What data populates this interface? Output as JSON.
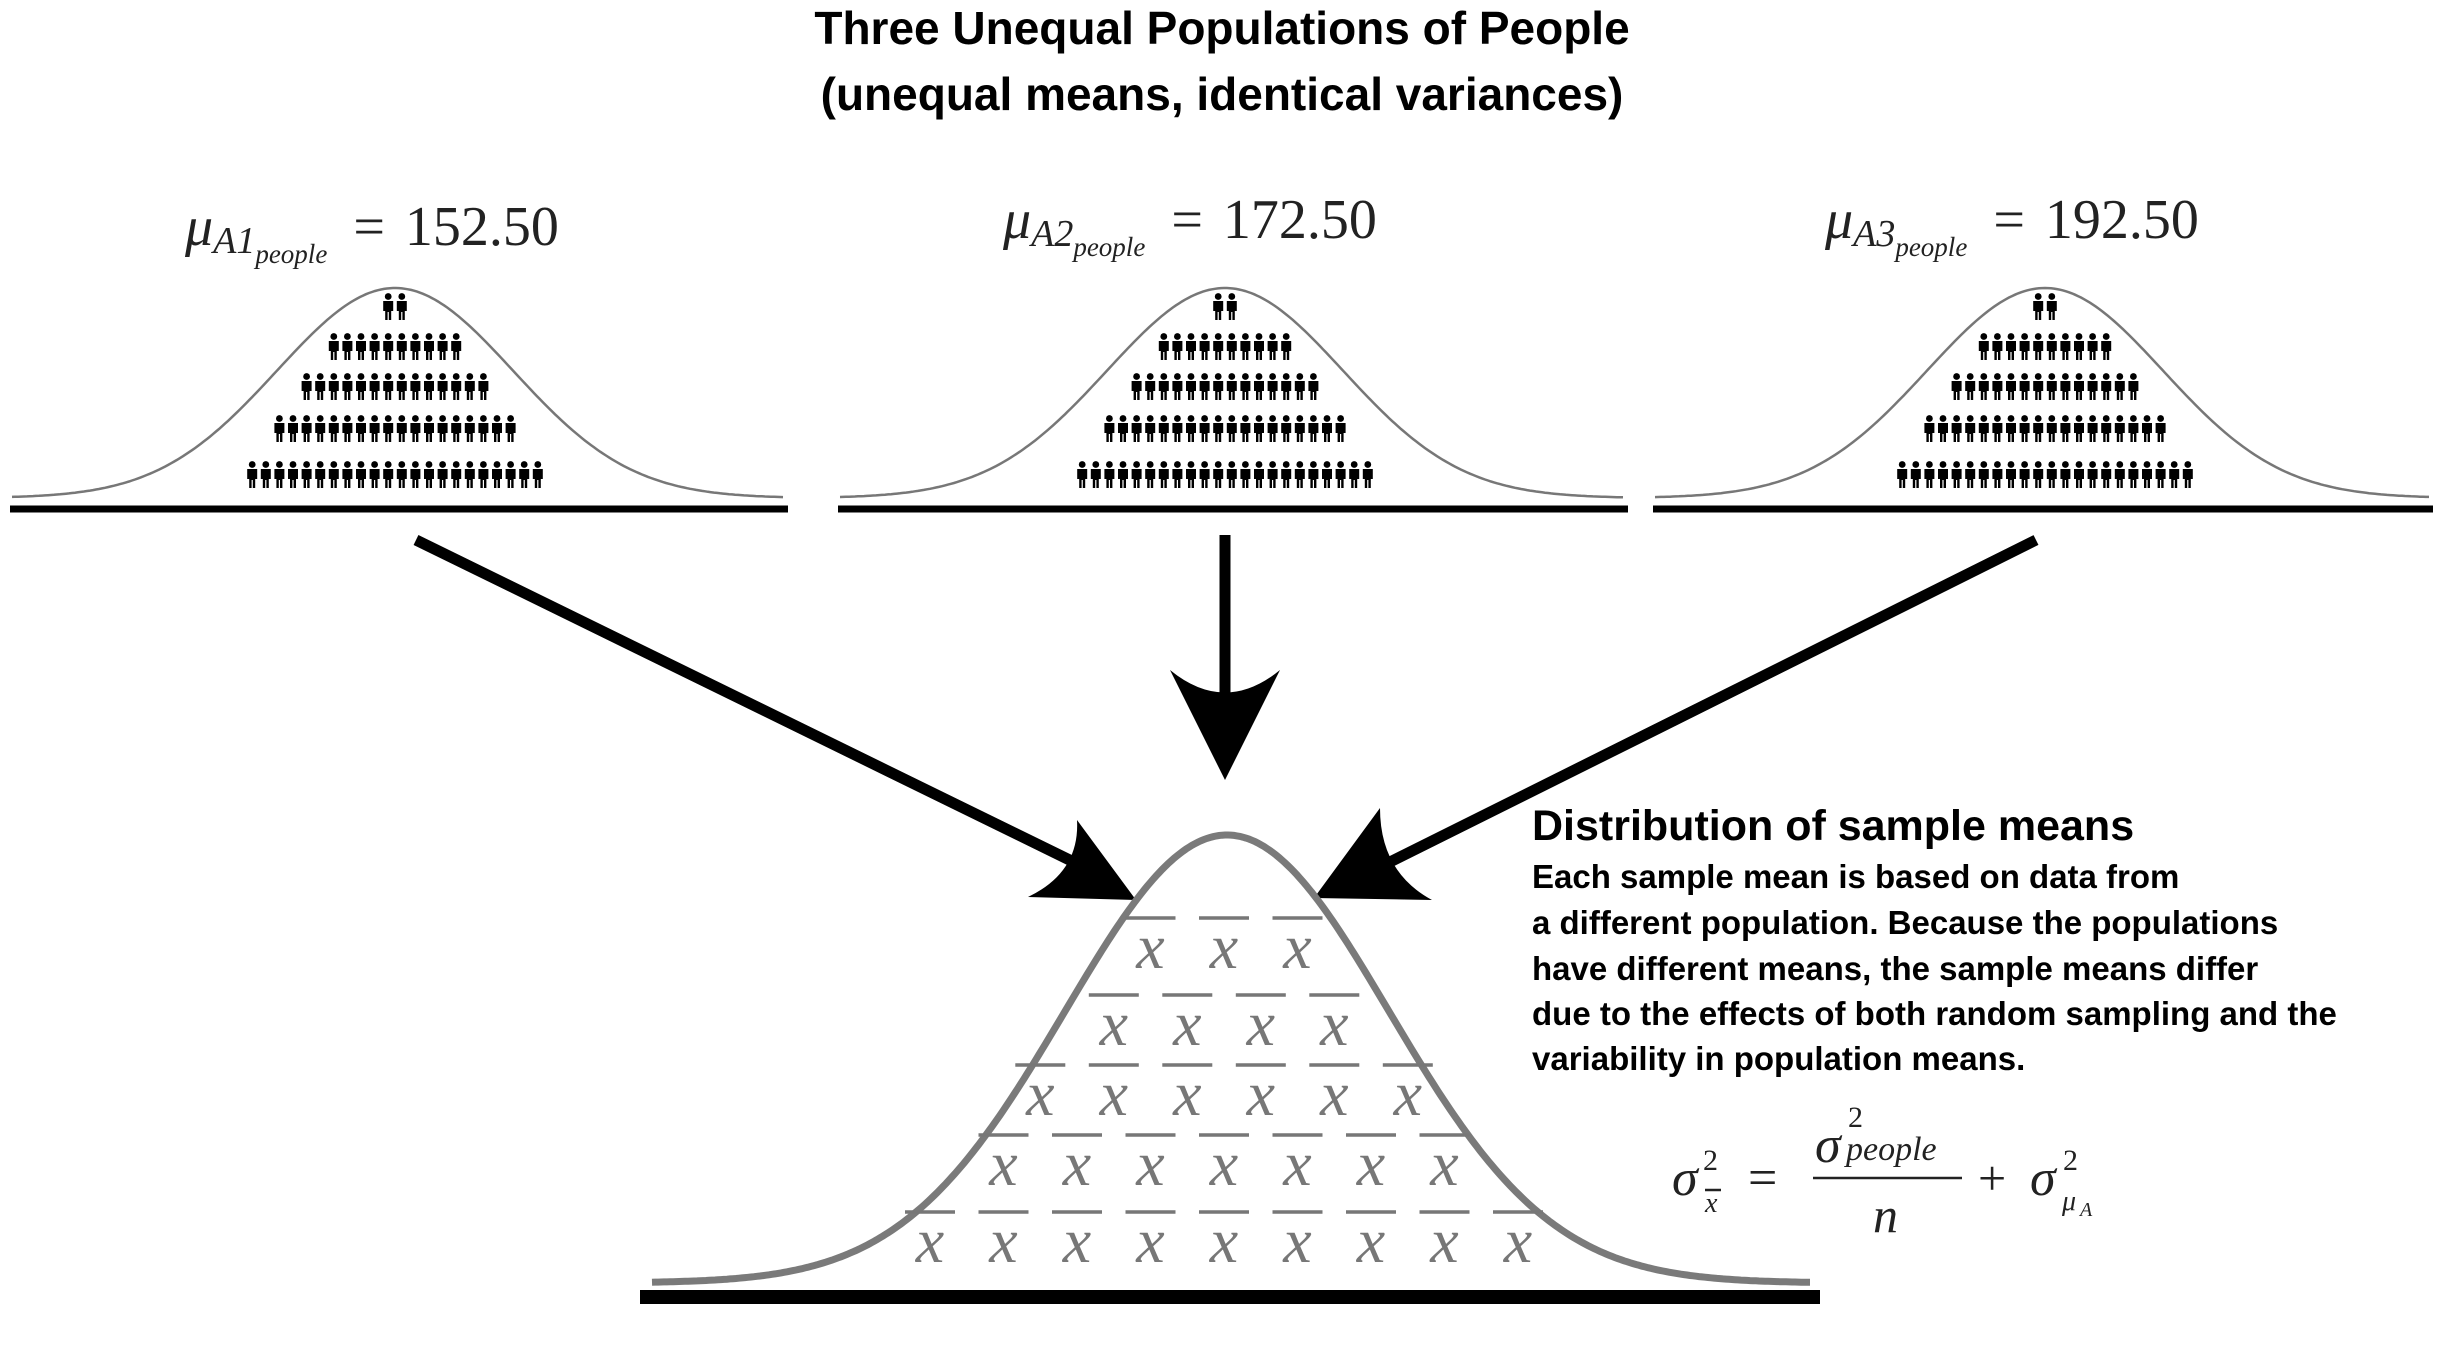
{
  "title": {
    "line1": "Three Unequal Populations of People",
    "line2": "(unequal means, identical variances)"
  },
  "populations": [
    {
      "mu_symbol": "μ",
      "subscript": "A1",
      "sub_subscript": "people",
      "equals": "=",
      "value": "152.50",
      "rows": [
        2,
        10,
        14,
        18,
        22
      ]
    },
    {
      "mu_symbol": "μ",
      "subscript": "A2",
      "sub_subscript": "people",
      "equals": "=",
      "value": "172.50",
      "rows": [
        2,
        10,
        14,
        18,
        22
      ]
    },
    {
      "mu_symbol": "μ",
      "subscript": "A3",
      "sub_subscript": "people",
      "equals": "=",
      "value": "192.50",
      "rows": [
        2,
        10,
        14,
        18,
        22
      ]
    }
  ],
  "sampling_distribution": {
    "heading": "Distribution of sample means",
    "description": [
      "Each sample mean is based on data from",
      "a different population. Because the populations",
      "have different means, the sample means differ",
      "due to the effects of both random sampling and the",
      "variability in population means."
    ],
    "xbar_symbol": "x",
    "rows": [
      3,
      4,
      6,
      7,
      9
    ]
  },
  "formula": {
    "sigma": "σ",
    "power": "2",
    "lhs_sub": "x",
    "equals": "=",
    "numerator_sub": "people",
    "denominator": "n",
    "plus": "+",
    "mu": "μ",
    "mu_sub": "A"
  },
  "colors": {
    "ink": "#000000",
    "curve_small": "#777777",
    "curve_big": "#7a7a7a",
    "xbar": "#777777"
  }
}
